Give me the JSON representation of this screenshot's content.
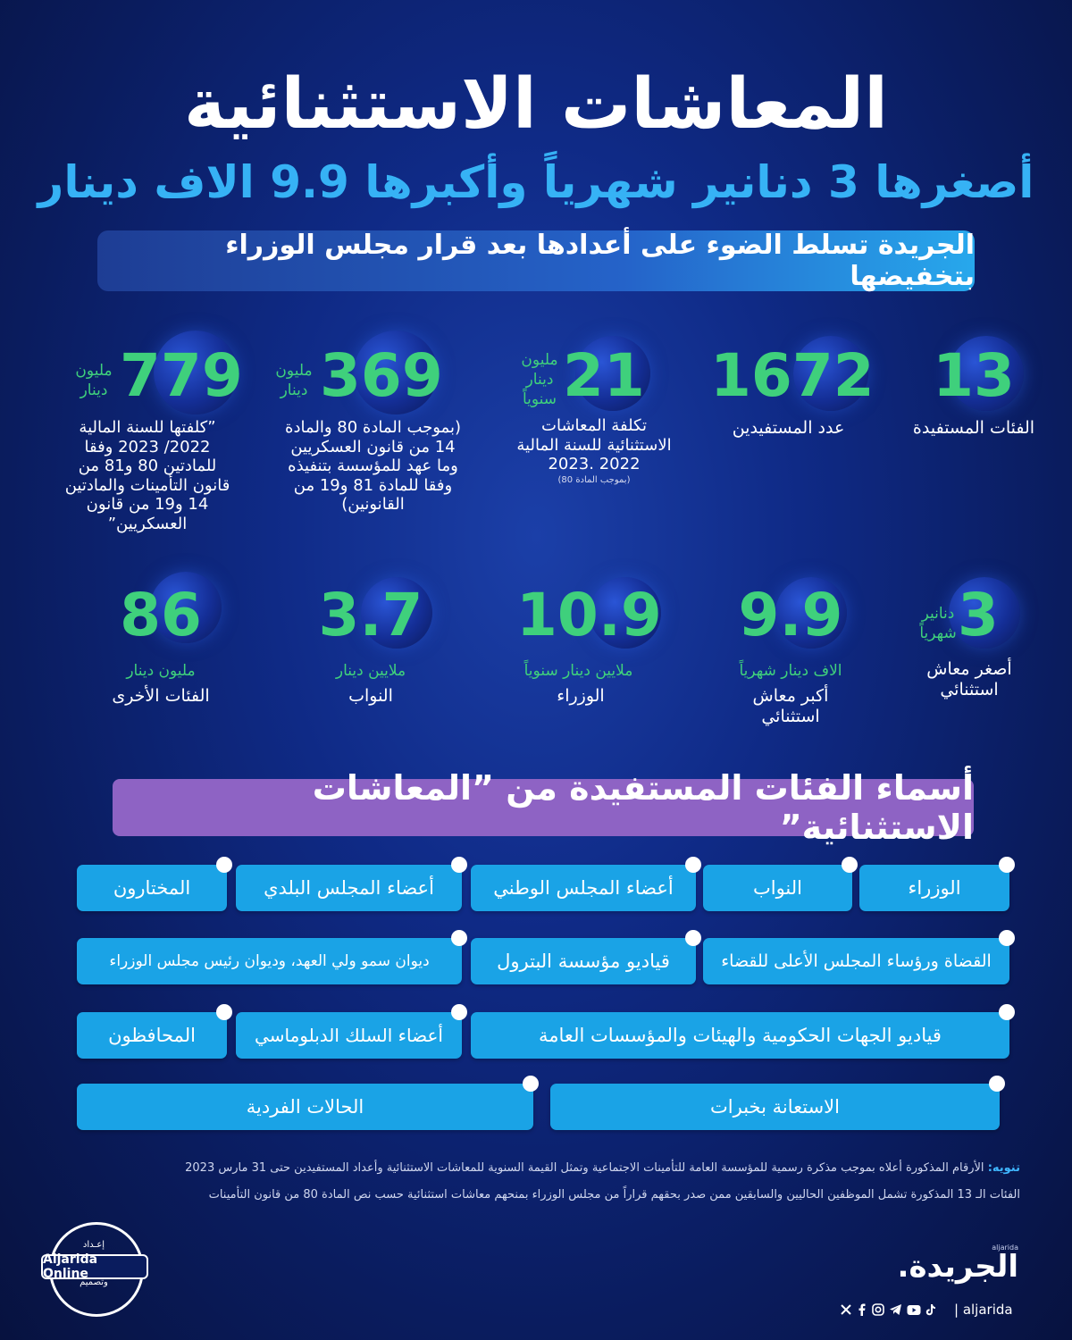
{
  "header": {
    "title": "المعاشات الاستثنائية",
    "subtitle": "أصغرها 3 دنانير شهرياً وأكبرها 9.9 الاف دينار",
    "banner": "الجريدة تسلط الضوء على أعدادها بعد قرار مجلس الوزراء بتخفيضها"
  },
  "stats_row1": [
    {
      "value": "13",
      "unit": "",
      "desc": "الفئات المستفيدة"
    },
    {
      "value": "1672",
      "unit": "",
      "desc": "عدد المستفيدين"
    },
    {
      "value": "21",
      "unit": "مليون دينار سنوياً",
      "desc": "تكلفة المعاشات الاستثنائية للسنة المالية 2022 .2023",
      "note": "(بموجب المادة 80)"
    },
    {
      "value": "369",
      "unit": "مليون دينار",
      "desc": "(بموجب المادة 80 والمادة 14 من قانون العسكريين وما عهد للمؤسسة بتنفيذه وفقا للمادة 81 و19 من القانونين)"
    },
    {
      "value": "779",
      "unit": "مليون دينار",
      "desc": "”كلفتها للسنة المالية 2022/ 2023 وفقا للمادتين 80 و81 من قانون التأمينات والمادتين 14 و19 من قانون العسكريين”"
    }
  ],
  "stats_row2": [
    {
      "value": "3",
      "unit": "دنانير شهرياً",
      "desc": "أصغر معاش استثنائي"
    },
    {
      "value": "9.9",
      "unit": "الاف دينار شهرياً",
      "desc": "أكبر معاش استثنائي"
    },
    {
      "value": "10.9",
      "unit": "ملايين دينار سنوياً",
      "desc": "الوزراء"
    },
    {
      "value": "3.7",
      "unit": "ملايين دينار",
      "desc": "النواب"
    },
    {
      "value": "86",
      "unit": "مليون دينار",
      "desc": "الفئات الأخرى"
    }
  ],
  "section_title": "أسماء الفئات المستفيدة من ”المعاشات الاستثنائية”",
  "categories": [
    "الوزراء",
    "النواب",
    "أعضاء المجلس الوطني",
    "أعضاء المجلس البلدي",
    "المختارون",
    "القضاة ورؤساء المجلس الأعلى للقضاء",
    "قياديو مؤسسة البترول",
    "ديوان سمو ولي العهد، وديوان رئيس مجلس الوزراء",
    "قياديو الجهات الحكومية والهيئات والمؤسسات العامة",
    "أعضاء السلك الدبلوماسي",
    "المحافظون",
    "الاستعانة بخبرات",
    "الحالات الفردية"
  ],
  "notes": {
    "label": "تنويه:",
    "line1": "الأرقام المذكورة أعلاه بموجب مذكرة رسمية للمؤسسة العامة للتأمينات الاجتماعية وتمثل القيمة السنوية للمعاشات الاستثنائية وأعداد المستفيدين حتى 31 مارس 2023",
    "line2": "الفئات الـ 13 المذكورة تشمل الموظفين الحاليين والسابقين ممن صدر بحقهم قراراً من مجلس الوزراء بمنحهم معاشات استثنائية حسب نص المادة 80 من قانون التأمينات"
  },
  "footer": {
    "prep_top": "إعـداد",
    "prep_name": "Aljarida Online",
    "prep_bottom": "وتصميم",
    "brand": "الجريدة.",
    "brand_small": "aljarida",
    "handle": "| aljarida",
    "social_icons": [
      "x-icon",
      "facebook-icon",
      "instagram-icon",
      "telegram-icon",
      "youtube-icon",
      "tiktok-icon"
    ]
  }
}
